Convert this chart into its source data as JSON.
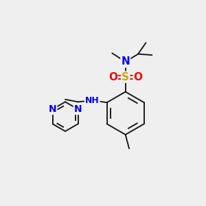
{
  "background_color": "#efefef",
  "bond_color": "#1a1a1a",
  "atom_colors": {
    "N": "#0000ee",
    "S": "#ccaa00",
    "O": "#ff0000",
    "C": "#1a1a1a"
  },
  "figsize": [
    3.0,
    3.0
  ],
  "dpi": 100,
  "lw": 1.4
}
